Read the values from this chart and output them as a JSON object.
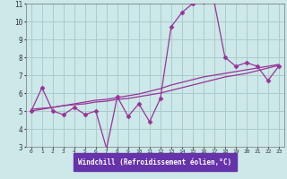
{
  "background_color": "#cce8e8",
  "grid_color": "#aacccc",
  "line_color": "#993399",
  "xlim": [
    -0.5,
    23.5
  ],
  "ylim": [
    3,
    11
  ],
  "xticks": [
    0,
    1,
    2,
    3,
    4,
    5,
    6,
    7,
    8,
    9,
    10,
    11,
    12,
    13,
    14,
    15,
    16,
    17,
    18,
    19,
    20,
    21,
    22,
    23
  ],
  "yticks": [
    3,
    4,
    5,
    6,
    7,
    8,
    9,
    10,
    11
  ],
  "xlabel": "Windchill (Refroidissement éolien,°C)",
  "main_data": [
    5.0,
    6.3,
    5.0,
    4.8,
    5.2,
    4.8,
    5.0,
    2.9,
    5.8,
    4.7,
    5.4,
    4.4,
    5.7,
    9.7,
    10.5,
    11.0,
    11.1,
    11.1,
    8.0,
    7.5,
    7.7,
    7.5,
    6.7,
    7.5
  ],
  "trend1": [
    5.0,
    5.1,
    5.2,
    5.3,
    5.35,
    5.4,
    5.5,
    5.55,
    5.65,
    5.7,
    5.8,
    5.9,
    6.0,
    6.15,
    6.3,
    6.45,
    6.6,
    6.75,
    6.9,
    7.0,
    7.1,
    7.25,
    7.4,
    7.55
  ],
  "trend2": [
    5.1,
    5.15,
    5.2,
    5.3,
    5.4,
    5.5,
    5.6,
    5.65,
    5.75,
    5.85,
    5.95,
    6.1,
    6.25,
    6.45,
    6.6,
    6.75,
    6.9,
    7.0,
    7.1,
    7.2,
    7.3,
    7.4,
    7.5,
    7.6
  ],
  "xlabel_bg": "#6633aa",
  "xlabel_fg": "#ffffff",
  "tick_color": "#333333",
  "spine_color": "#888888"
}
